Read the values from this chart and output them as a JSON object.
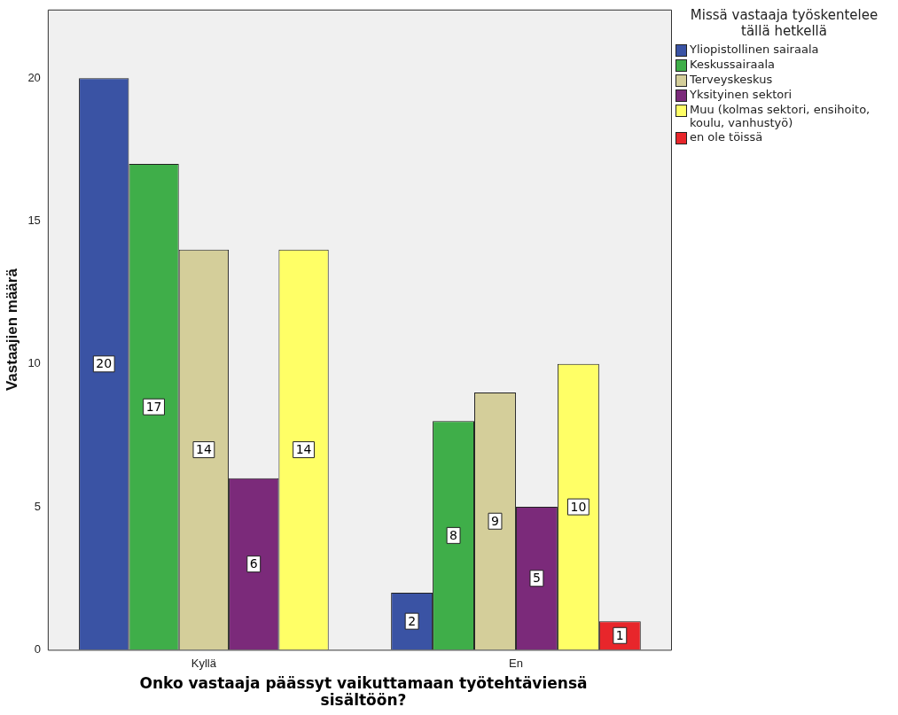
{
  "chart_data": {
    "type": "bar",
    "categories": [
      "Kyllä",
      "En"
    ],
    "xlabel": "Onko vastaaja päässyt vaikuttamaan työtehtäviensä sisältöön?",
    "ylabel": "Vastaajien määrä",
    "legend_title": "Missä vastaaja työskentelee tällä hetkellä",
    "series": [
      {
        "name": "Yliopistollinen sairaala",
        "color": "#3a53a4",
        "values": [
          20,
          2
        ]
      },
      {
        "name": "Keskussairaala",
        "color": "#3fae49",
        "values": [
          17,
          8
        ]
      },
      {
        "name": "Terveyskeskus",
        "color": "#d4ce9a",
        "values": [
          14,
          9
        ]
      },
      {
        "name": "Yksityinen sektori",
        "color": "#7b2a7a",
        "values": [
          6,
          5
        ]
      },
      {
        "name": "Muu (kolmas sektori, ensihoito, koulu, vanhustyö)",
        "color": "#ffff66",
        "values": [
          14,
          10
        ]
      },
      {
        "name": "en ole töissä",
        "color": "#e8262b",
        "values": [
          null,
          1
        ]
      }
    ],
    "ylim": [
      0,
      22.4
    ],
    "yticks": [
      0,
      5,
      10,
      15,
      20
    ],
    "grid": false,
    "legend": "top right",
    "data_labels": true
  }
}
